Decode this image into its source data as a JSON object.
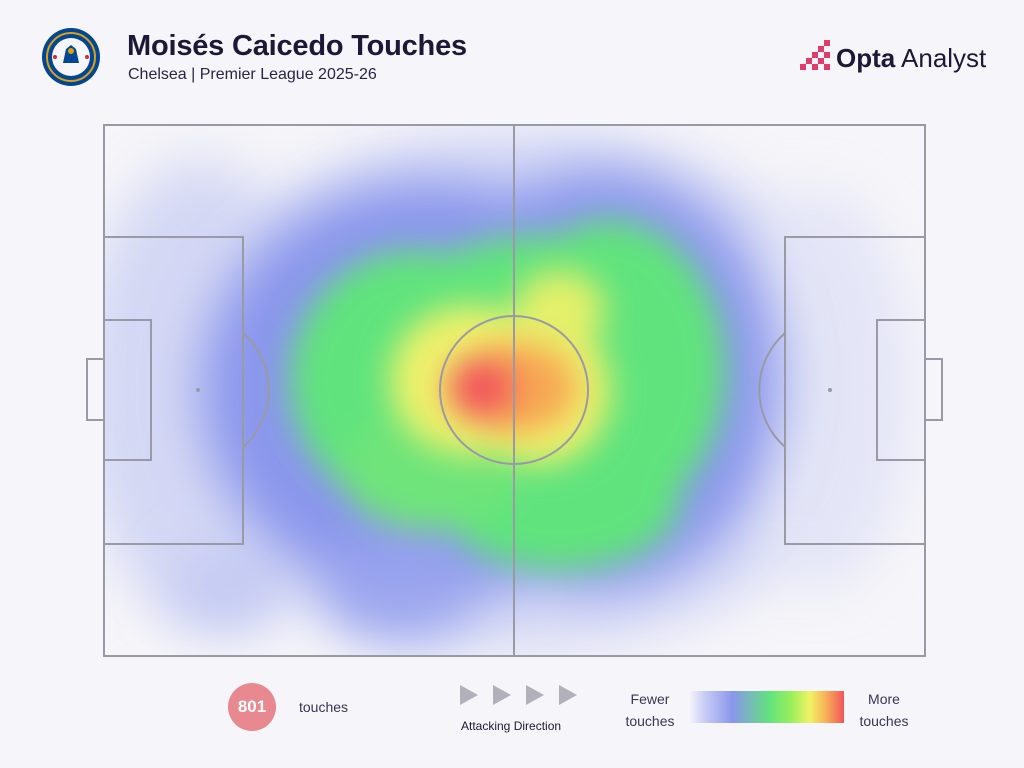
{
  "header": {
    "title": "Moisés Caicedo Touches",
    "subtitle": "Chelsea | Premier League 2025-26",
    "badge_icon": "chelsea-crest-icon",
    "brand_bold": "Opta",
    "brand_light": " Analyst",
    "brand_color": "#e23c6a"
  },
  "chart_data": {
    "type": "heatmap",
    "title": "Moisés Caicedo Touches",
    "subtitle": "Chelsea | Premier League 2025-26",
    "pitch": "full-pitch-horizontal",
    "total_touches": 801,
    "attacking_direction": "left-to-right",
    "color_scale": [
      "#c9cdf5",
      "#8a96ec",
      "#61e37d",
      "#f2f266",
      "#f7b257",
      "#f2555b"
    ],
    "density_description": "Peak in centre circle; green/yellow zone spans both halves of midfield; blue low density near both penalty areas and wide areas"
  },
  "footer": {
    "touch_count": "801",
    "touch_label": "touches",
    "direction_label": "Attacking Direction",
    "legend_low_1": "Fewer",
    "legend_low_2": "touches",
    "legend_high_1": "More",
    "legend_high_2": "touches",
    "count_color": "#e8888f"
  }
}
